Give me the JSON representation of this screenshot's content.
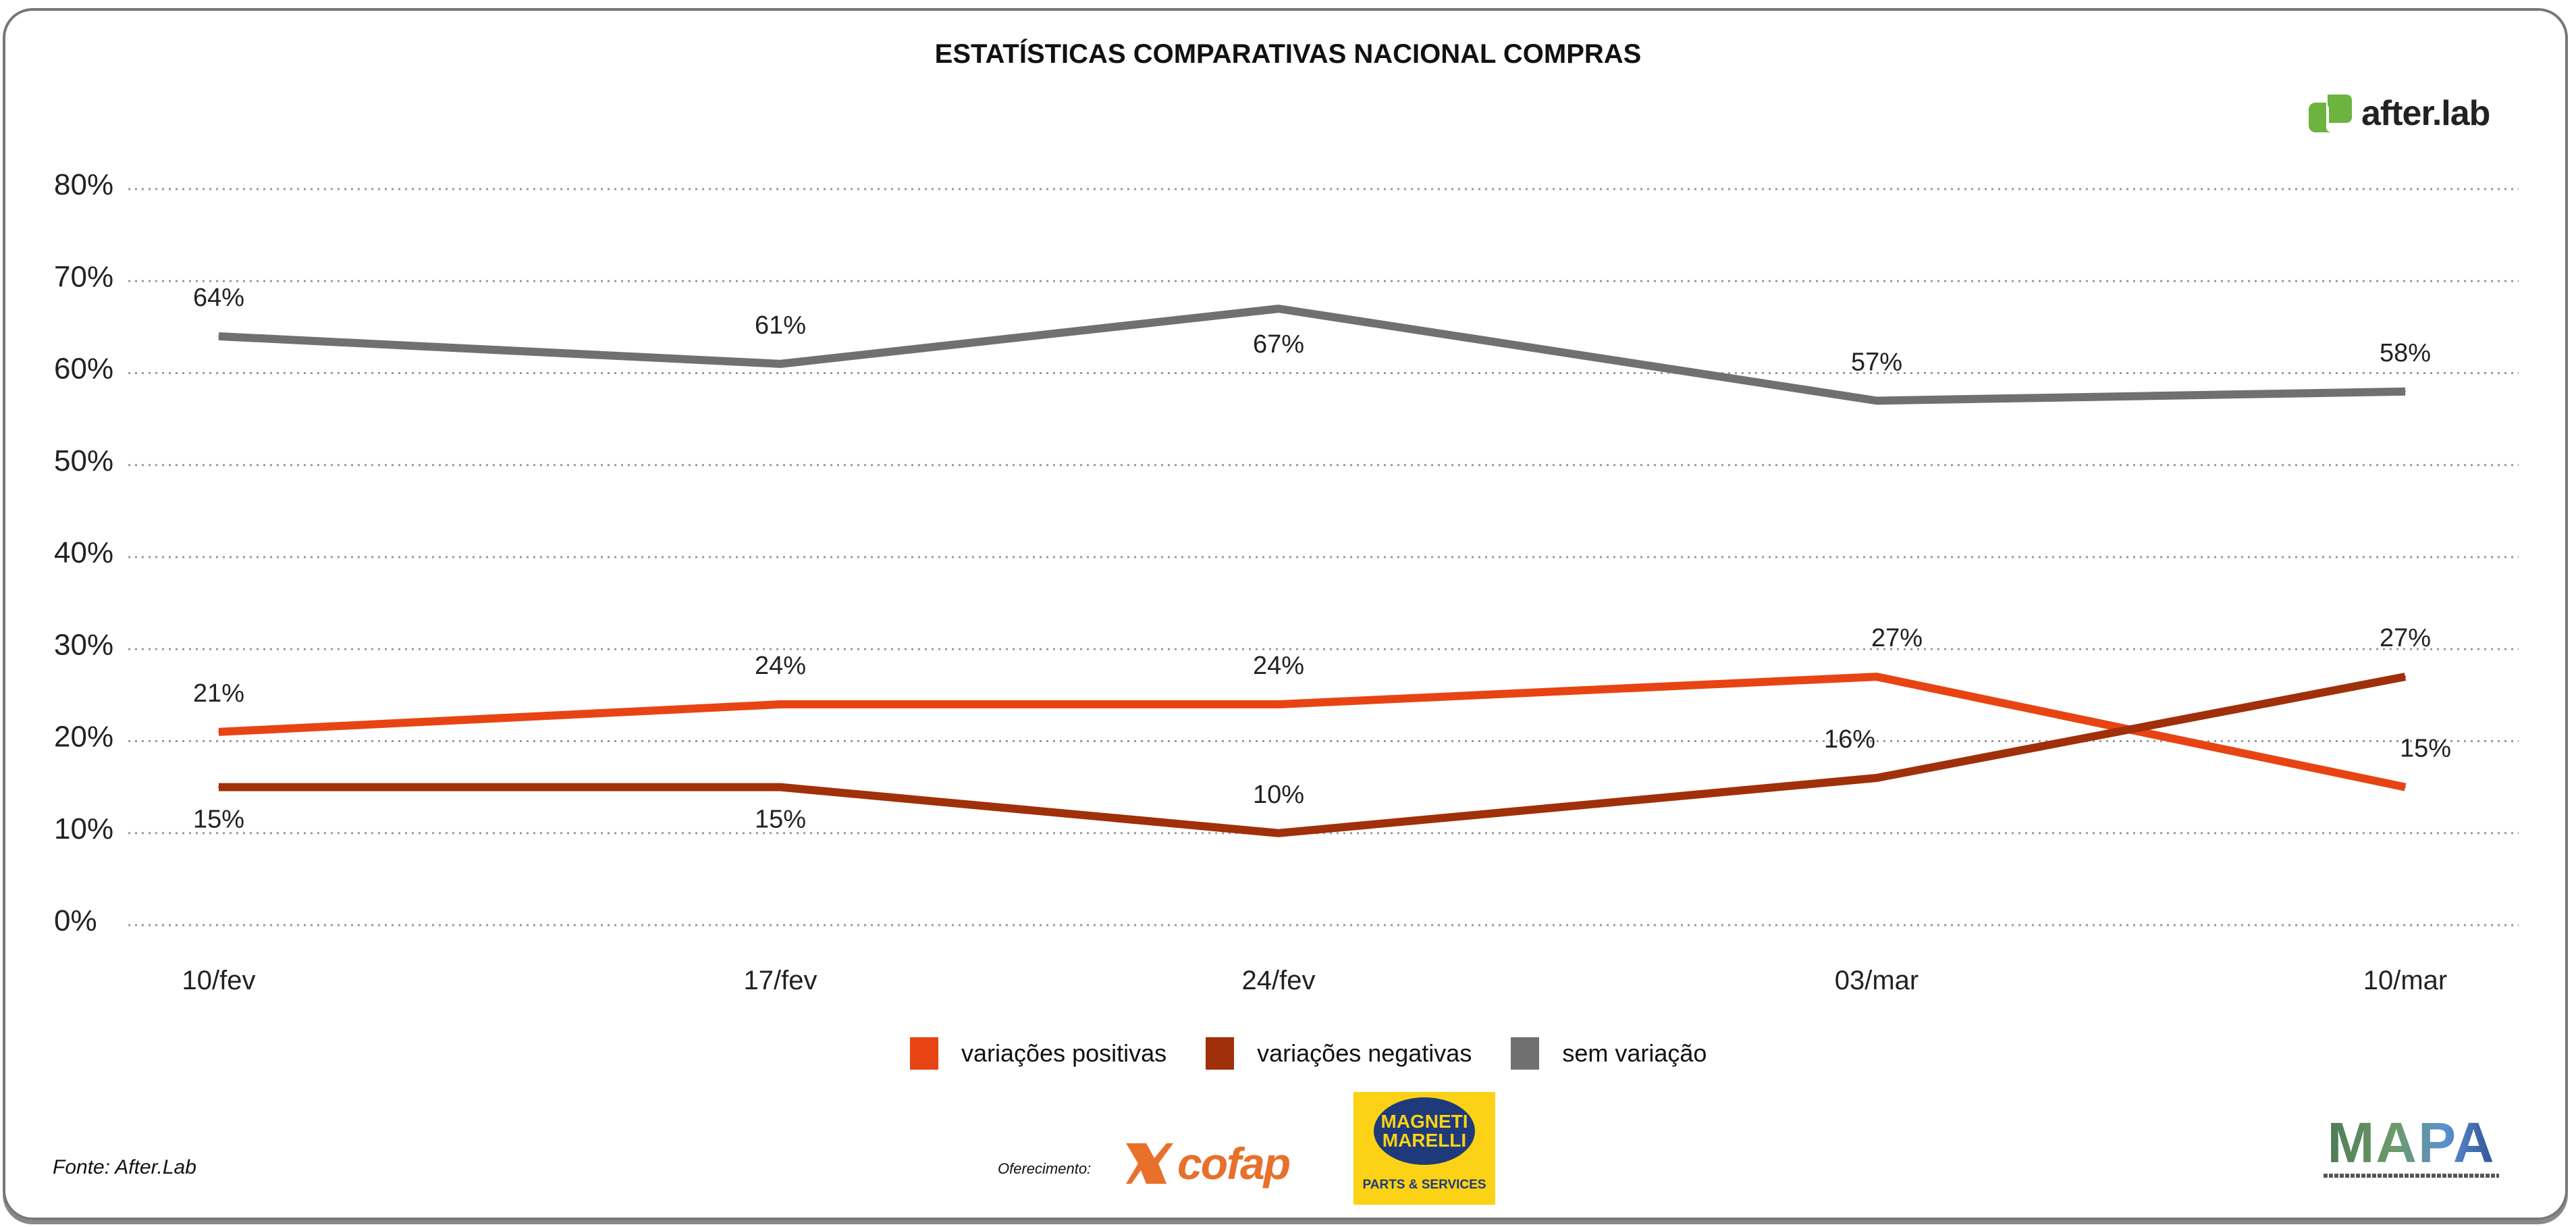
{
  "chart_data": {
    "type": "line",
    "title": "ESTATÍSTICAS COMPARATIVAS NACIONAL COMPRAS",
    "categories": [
      "10/fev",
      "17/fev",
      "24/fev",
      "03/mar",
      "10/mar"
    ],
    "y_ticks": [
      "0%",
      "10%",
      "20%",
      "30%",
      "40%",
      "50%",
      "60%",
      "70%",
      "80%"
    ],
    "ylim": [
      0,
      80
    ],
    "grid": true,
    "legend_position": "bottom",
    "series": [
      {
        "name": "variações positivas",
        "color": "#E84413",
        "values": [
          21,
          24,
          24,
          27,
          15
        ],
        "labels": [
          "21%",
          "24%",
          "24%",
          "27%",
          "15%"
        ]
      },
      {
        "name": "variações negativas",
        "color": "#A0300A",
        "values": [
          15,
          15,
          10,
          16,
          27
        ],
        "labels": [
          "15%",
          "15%",
          "10%",
          "16%",
          "27%"
        ]
      },
      {
        "name": "sem variação",
        "color": "#707070",
        "values": [
          64,
          61,
          67,
          57,
          58
        ],
        "labels": [
          "64%",
          "61%",
          "67%",
          "57%",
          "58%"
        ]
      }
    ]
  },
  "brand": {
    "logo_text": "after.lab",
    "logo_color": "#6DB33F"
  },
  "footer": {
    "source": "Fonte: After.Lab",
    "sponsor_label": "Oferecimento:",
    "sponsor1": "cofap",
    "sponsor2_line1": "MAGNETI",
    "sponsor2_line2": "MARELLI",
    "sponsor2_sub": "PARTS & SERVICES",
    "partner": "MAPA"
  }
}
